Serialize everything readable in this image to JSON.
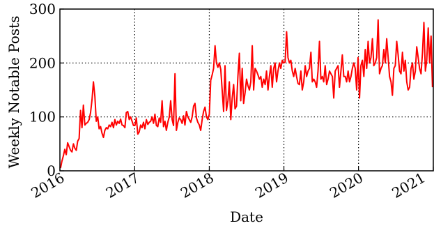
{
  "chart_data": {
    "type": "line",
    "xlabel": "Date",
    "ylabel": "Weekly Notable Posts",
    "xlim": [
      "2016-01-01",
      "2021-01-01"
    ],
    "ylim": [
      0,
      300
    ],
    "x_ticks": [
      "2016",
      "2017",
      "2018",
      "2019",
      "2020",
      "2021"
    ],
    "y_ticks": [
      0,
      100,
      200,
      300
    ],
    "grid": true,
    "grid_style": "dotted",
    "legend": "none",
    "series": [
      {
        "color": "#ff0000",
        "x": [
          "2016-01-04",
          "2016-01-11",
          "2016-01-18",
          "2016-01-25",
          "2016-02-01",
          "2016-02-08",
          "2016-02-15",
          "2016-02-22",
          "2016-02-29",
          "2016-03-07",
          "2016-03-14",
          "2016-03-21",
          "2016-03-28",
          "2016-04-04",
          "2016-04-11",
          "2016-04-18",
          "2016-04-25",
          "2016-05-02",
          "2016-05-09",
          "2016-05-16",
          "2016-05-23",
          "2016-05-30",
          "2016-06-06",
          "2016-06-13",
          "2016-06-20",
          "2016-06-27",
          "2016-07-04",
          "2016-07-11",
          "2016-07-18",
          "2016-07-25",
          "2016-08-01",
          "2016-08-08",
          "2016-08-15",
          "2016-08-22",
          "2016-08-29",
          "2016-09-05",
          "2016-09-12",
          "2016-09-19",
          "2016-09-26",
          "2016-10-03",
          "2016-10-10",
          "2016-10-17",
          "2016-10-24",
          "2016-10-31",
          "2016-11-07",
          "2016-11-14",
          "2016-11-21",
          "2016-11-28",
          "2016-12-05",
          "2016-12-12",
          "2016-12-19",
          "2016-12-26",
          "2017-01-02",
          "2017-01-09",
          "2017-01-16",
          "2017-01-23",
          "2017-01-30",
          "2017-02-06",
          "2017-02-13",
          "2017-02-20",
          "2017-02-27",
          "2017-03-06",
          "2017-03-13",
          "2017-03-20",
          "2017-03-27",
          "2017-04-03",
          "2017-04-10",
          "2017-04-17",
          "2017-04-24",
          "2017-05-01",
          "2017-05-08",
          "2017-05-15",
          "2017-05-22",
          "2017-05-29",
          "2017-06-05",
          "2017-06-12",
          "2017-06-19",
          "2017-06-26",
          "2017-07-03",
          "2017-07-10",
          "2017-07-17",
          "2017-07-24",
          "2017-07-31",
          "2017-08-07",
          "2017-08-14",
          "2017-08-21",
          "2017-08-28",
          "2017-09-04",
          "2017-09-11",
          "2017-09-18",
          "2017-09-25",
          "2017-10-02",
          "2017-10-09",
          "2017-10-16",
          "2017-10-23",
          "2017-10-30",
          "2017-11-06",
          "2017-11-13",
          "2017-11-20",
          "2017-11-27",
          "2017-12-04",
          "2017-12-11",
          "2017-12-18",
          "2017-12-25",
          "2018-01-01",
          "2018-01-08",
          "2018-01-15",
          "2018-01-22",
          "2018-01-29",
          "2018-02-05",
          "2018-02-12",
          "2018-02-19",
          "2018-02-26",
          "2018-03-05",
          "2018-03-12",
          "2018-03-19",
          "2018-03-26",
          "2018-04-02",
          "2018-04-09",
          "2018-04-16",
          "2018-04-23",
          "2018-04-30",
          "2018-05-07",
          "2018-05-14",
          "2018-05-21",
          "2018-05-28",
          "2018-06-04",
          "2018-06-11",
          "2018-06-18",
          "2018-06-25",
          "2018-07-02",
          "2018-07-09",
          "2018-07-16",
          "2018-07-23",
          "2018-07-30",
          "2018-08-06",
          "2018-08-13",
          "2018-08-20",
          "2018-08-27",
          "2018-09-03",
          "2018-09-10",
          "2018-09-17",
          "2018-09-24",
          "2018-10-01",
          "2018-10-08",
          "2018-10-15",
          "2018-10-22",
          "2018-10-29",
          "2018-11-05",
          "2018-11-12",
          "2018-11-19",
          "2018-11-26",
          "2018-12-03",
          "2018-12-10",
          "2018-12-17",
          "2018-12-24",
          "2018-12-31",
          "2019-01-07",
          "2019-01-14",
          "2019-01-21",
          "2019-01-28",
          "2019-02-04",
          "2019-02-11",
          "2019-02-18",
          "2019-02-25",
          "2019-03-04",
          "2019-03-11",
          "2019-03-18",
          "2019-03-25",
          "2019-04-01",
          "2019-04-08",
          "2019-04-15",
          "2019-04-22",
          "2019-04-29",
          "2019-05-06",
          "2019-05-13",
          "2019-05-20",
          "2019-05-27",
          "2019-06-03",
          "2019-06-10",
          "2019-06-17",
          "2019-06-24",
          "2019-07-01",
          "2019-07-08",
          "2019-07-15",
          "2019-07-22",
          "2019-07-29",
          "2019-08-05",
          "2019-08-12",
          "2019-08-19",
          "2019-08-26",
          "2019-09-02",
          "2019-09-09",
          "2019-09-16",
          "2019-09-23",
          "2019-09-30",
          "2019-10-07",
          "2019-10-14",
          "2019-10-21",
          "2019-10-28",
          "2019-11-04",
          "2019-11-11",
          "2019-11-18",
          "2019-11-25",
          "2019-12-02",
          "2019-12-09",
          "2019-12-16",
          "2019-12-23",
          "2019-12-30",
          "2020-01-06",
          "2020-01-13",
          "2020-01-20",
          "2020-01-27",
          "2020-02-03",
          "2020-02-10",
          "2020-02-17",
          "2020-02-24",
          "2020-03-02",
          "2020-03-09",
          "2020-03-16",
          "2020-03-23",
          "2020-03-30",
          "2020-04-06",
          "2020-04-13",
          "2020-04-20",
          "2020-04-27",
          "2020-05-04",
          "2020-05-11",
          "2020-05-18",
          "2020-05-25",
          "2020-06-01",
          "2020-06-08",
          "2020-06-15",
          "2020-06-22",
          "2020-06-29",
          "2020-07-06",
          "2020-07-13",
          "2020-07-20",
          "2020-07-27",
          "2020-08-03",
          "2020-08-10",
          "2020-08-17",
          "2020-08-24",
          "2020-08-31",
          "2020-09-07",
          "2020-09-14",
          "2020-09-21",
          "2020-09-28",
          "2020-10-05",
          "2020-10-12",
          "2020-10-19",
          "2020-10-26",
          "2020-11-02",
          "2020-11-09",
          "2020-11-16",
          "2020-11-23",
          "2020-11-30",
          "2020-12-07",
          "2020-12-14",
          "2020-12-21",
          "2020-12-28"
        ],
        "values": [
          5,
          18,
          28,
          40,
          30,
          52,
          45,
          38,
          35,
          50,
          42,
          38,
          55,
          60,
          112,
          80,
          122,
          85,
          88,
          90,
          95,
          108,
          132,
          165,
          138,
          92,
          100,
          78,
          82,
          70,
          62,
          75,
          80,
          78,
          85,
          82,
          90,
          80,
          95,
          85,
          92,
          88,
          96,
          85,
          84,
          80,
          108,
          110,
          95,
          100,
          92,
          84,
          84,
          98,
          68,
          72,
          85,
          80,
          90,
          78,
          95,
          86,
          90,
          92,
          100,
          88,
          105,
          84,
          82,
          98,
          90,
          130,
          82,
          92,
          75,
          90,
          100,
          130,
          95,
          84,
          180,
          75,
          90,
          98,
          95,
          88,
          102,
          85,
          110,
          100,
          95,
          90,
          100,
          120,
          125,
          98,
          90,
          85,
          75,
          95,
          110,
          118,
          100,
          95,
          105,
          168,
          178,
          190,
          232,
          200,
          192,
          200,
          188,
          150,
          110,
          195,
          112,
          130,
          165,
          95,
          135,
          160,
          115,
          120,
          175,
          218,
          130,
          190,
          125,
          145,
          170,
          158,
          150,
          165,
          232,
          150,
          190,
          185,
          178,
          170,
          175,
          155,
          170,
          160,
          185,
          150,
          175,
          195,
          155,
          190,
          200,
          165,
          185,
          200,
          190,
          205,
          200,
          202,
          258,
          210,
          200,
          205,
          185,
          175,
          190,
          175,
          162,
          160,
          185,
          150,
          165,
          195,
          175,
          185,
          190,
          220,
          165,
          170,
          165,
          155,
          185,
          240,
          170,
          175,
          165,
          195,
          160,
          170,
          185,
          180,
          175,
          135,
          185,
          190,
          195,
          155,
          185,
          215,
          175,
          175,
          165,
          185,
          165,
          175,
          190,
          200,
          190,
          150,
          210,
          135,
          195,
          205,
          175,
          225,
          190,
          240,
          200,
          210,
          245,
          195,
          200,
          210,
          280,
          180,
          190,
          195,
          225,
          200,
          245,
          210,
          175,
          165,
          140,
          190,
          195,
          240,
          215,
          185,
          180,
          220,
          185,
          205,
          165,
          150,
          155,
          190,
          200,
          170,
          185,
          230,
          210,
          190,
          180,
          220,
          275,
          185,
          205,
          265,
          200,
          250,
          155
        ]
      }
    ]
  }
}
